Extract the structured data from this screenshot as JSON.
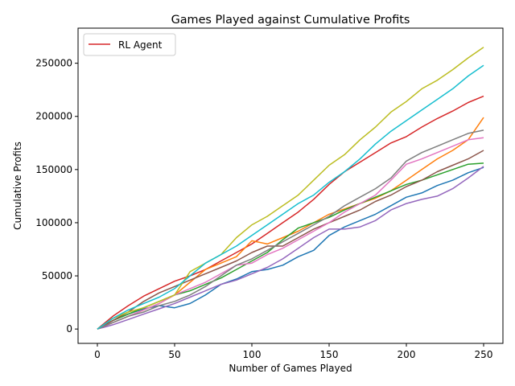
{
  "chart_data": {
    "type": "line",
    "title": "Games Played against Cumulative Profits",
    "xlabel": "Number of Games Played",
    "ylabel": "Cumulative Profits",
    "xlim": [
      -12.5,
      262.5
    ],
    "ylim": [
      -13500,
      283000
    ],
    "xticks": [
      0,
      50,
      100,
      150,
      200,
      250
    ],
    "yticks": [
      0,
      50000,
      100000,
      150000,
      200000,
      250000
    ],
    "grid": false,
    "legend": {
      "position": "upper left",
      "entries": [
        "RL Agent"
      ]
    },
    "x_step": 10,
    "series": [
      {
        "name": "RL Agent",
        "color": "#d62728",
        "values": [
          0,
          12000,
          22000,
          31000,
          38000,
          45000,
          50000,
          56000,
          64000,
          72000,
          80000,
          90000,
          100000,
          110000,
          122000,
          136000,
          148000,
          157000,
          166000,
          175000,
          181000,
          190000,
          198000,
          205000,
          213000,
          219000
        ]
      },
      {
        "color": "#1f77b4",
        "values": [
          0,
          8000,
          14000,
          19000,
          22000,
          20000,
          24000,
          32000,
          42000,
          47000,
          54000,
          56000,
          60000,
          68000,
          74000,
          88000,
          96000,
          102000,
          108000,
          116000,
          124000,
          128000,
          135000,
          140000,
          147000,
          152000
        ]
      },
      {
        "color": "#ff7f0e",
        "values": [
          0,
          6000,
          12000,
          18000,
          24000,
          32000,
          44000,
          56000,
          62000,
          68000,
          83000,
          80000,
          86000,
          92000,
          100000,
          108000,
          113000,
          118000,
          123000,
          130000,
          140000,
          150000,
          160000,
          168000,
          178000,
          199000
        ]
      },
      {
        "color": "#2ca02c",
        "values": [
          0,
          8000,
          14000,
          20000,
          26000,
          32000,
          36000,
          42000,
          48000,
          56000,
          64000,
          72000,
          84000,
          95000,
          100000,
          105000,
          112000,
          118000,
          124000,
          130000,
          136000,
          140000,
          145000,
          150000,
          155000,
          156000
        ]
      },
      {
        "color": "#9467bd",
        "values": [
          0,
          4000,
          9000,
          14000,
          19000,
          24000,
          30000,
          36000,
          42000,
          46000,
          52000,
          58000,
          66000,
          76000,
          86000,
          94000,
          94000,
          96000,
          102000,
          112000,
          118000,
          122000,
          125000,
          132000,
          142000,
          153000
        ]
      },
      {
        "color": "#8c564b",
        "values": [
          0,
          8000,
          16000,
          26000,
          34000,
          40000,
          46000,
          52000,
          58000,
          64000,
          72000,
          78000,
          78000,
          86000,
          94000,
          100000,
          106000,
          112000,
          120000,
          126000,
          134000,
          140000,
          148000,
          154000,
          160000,
          168000
        ]
      },
      {
        "color": "#e377c2",
        "values": [
          0,
          6000,
          12000,
          18000,
          24000,
          32000,
          38000,
          44000,
          52000,
          60000,
          62000,
          70000,
          76000,
          84000,
          92000,
          100000,
          110000,
          118000,
          126000,
          140000,
          155000,
          160000,
          166000,
          172000,
          178000,
          180000
        ]
      },
      {
        "color": "#7f7f7f",
        "values": [
          0,
          6000,
          12000,
          16000,
          22000,
          26000,
          32000,
          40000,
          50000,
          60000,
          66000,
          74000,
          82000,
          90000,
          98000,
          106000,
          116000,
          124000,
          132000,
          142000,
          158000,
          166000,
          172000,
          178000,
          184000,
          187000
        ]
      },
      {
        "color": "#bcbd22",
        "values": [
          0,
          10000,
          16000,
          20000,
          26000,
          32000,
          54000,
          62000,
          70000,
          86000,
          98000,
          106000,
          116000,
          126000,
          140000,
          154000,
          164000,
          178000,
          190000,
          204000,
          214000,
          226000,
          234000,
          244000,
          255000,
          265000
        ]
      },
      {
        "color": "#17becf",
        "values": [
          0,
          10000,
          18000,
          24000,
          30000,
          38000,
          50000,
          62000,
          70000,
          78000,
          88000,
          98000,
          108000,
          118000,
          126000,
          138000,
          148000,
          160000,
          174000,
          186000,
          196000,
          206000,
          216000,
          226000,
          238000,
          248000
        ]
      }
    ]
  }
}
